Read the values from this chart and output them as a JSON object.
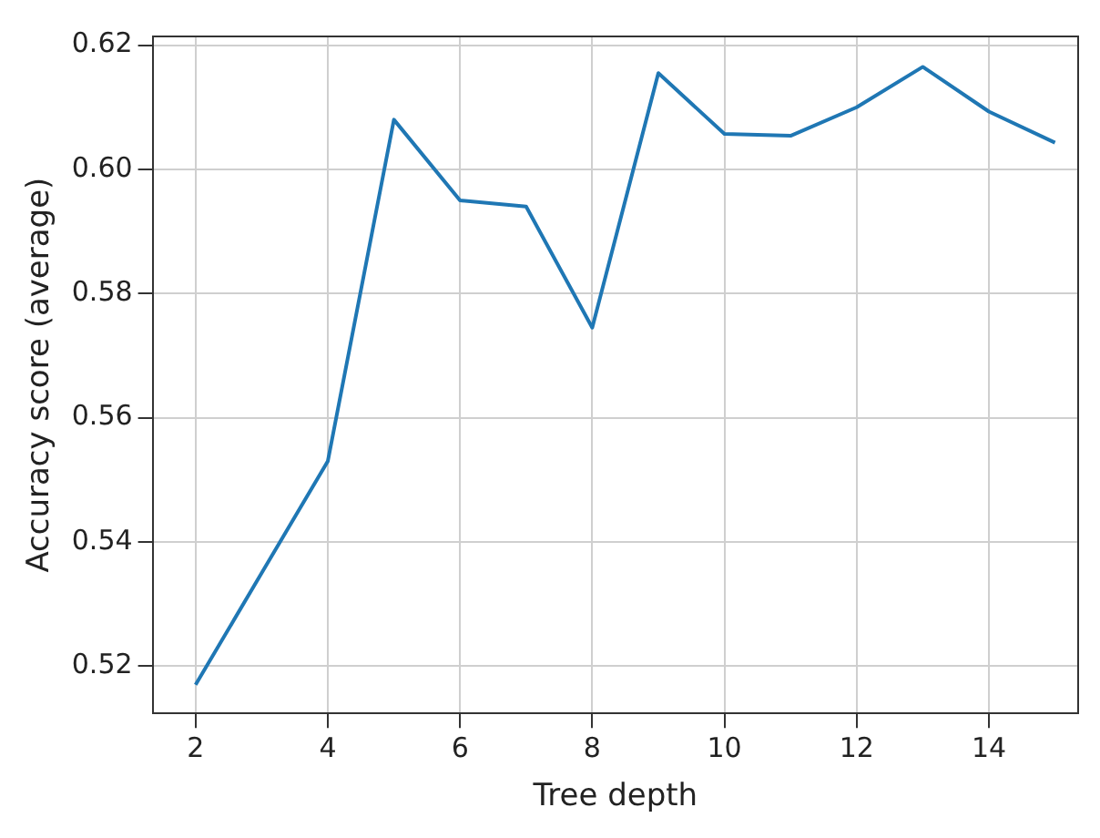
{
  "chart_data": {
    "type": "line",
    "xlabel": "Tree depth",
    "ylabel": "Accuracy score (average)",
    "x": [
      2,
      3,
      4,
      5,
      6,
      7,
      8,
      9,
      10,
      11,
      12,
      13,
      14,
      15
    ],
    "series": [
      {
        "color": "#1f77b4",
        "values": [
          0.517,
          0.535,
          0.553,
          0.608,
          0.595,
          0.594,
          0.5745,
          0.6155,
          0.6057,
          0.6054,
          0.61,
          0.6165,
          0.6093,
          0.6043
        ]
      }
    ],
    "xlim": [
      1.35,
      15.35
    ],
    "xticks": [
      2,
      4,
      6,
      8,
      10,
      12,
      14
    ],
    "ylim": [
      0.5124,
      0.6214
    ],
    "yticks": [
      0.52,
      0.54,
      0.56,
      0.58,
      {
        "value": 0.6,
        "label": "0.60"
      },
      0.62
    ],
    "grid": true,
    "legend": false,
    "marker": "none",
    "line_style": "solid"
  }
}
